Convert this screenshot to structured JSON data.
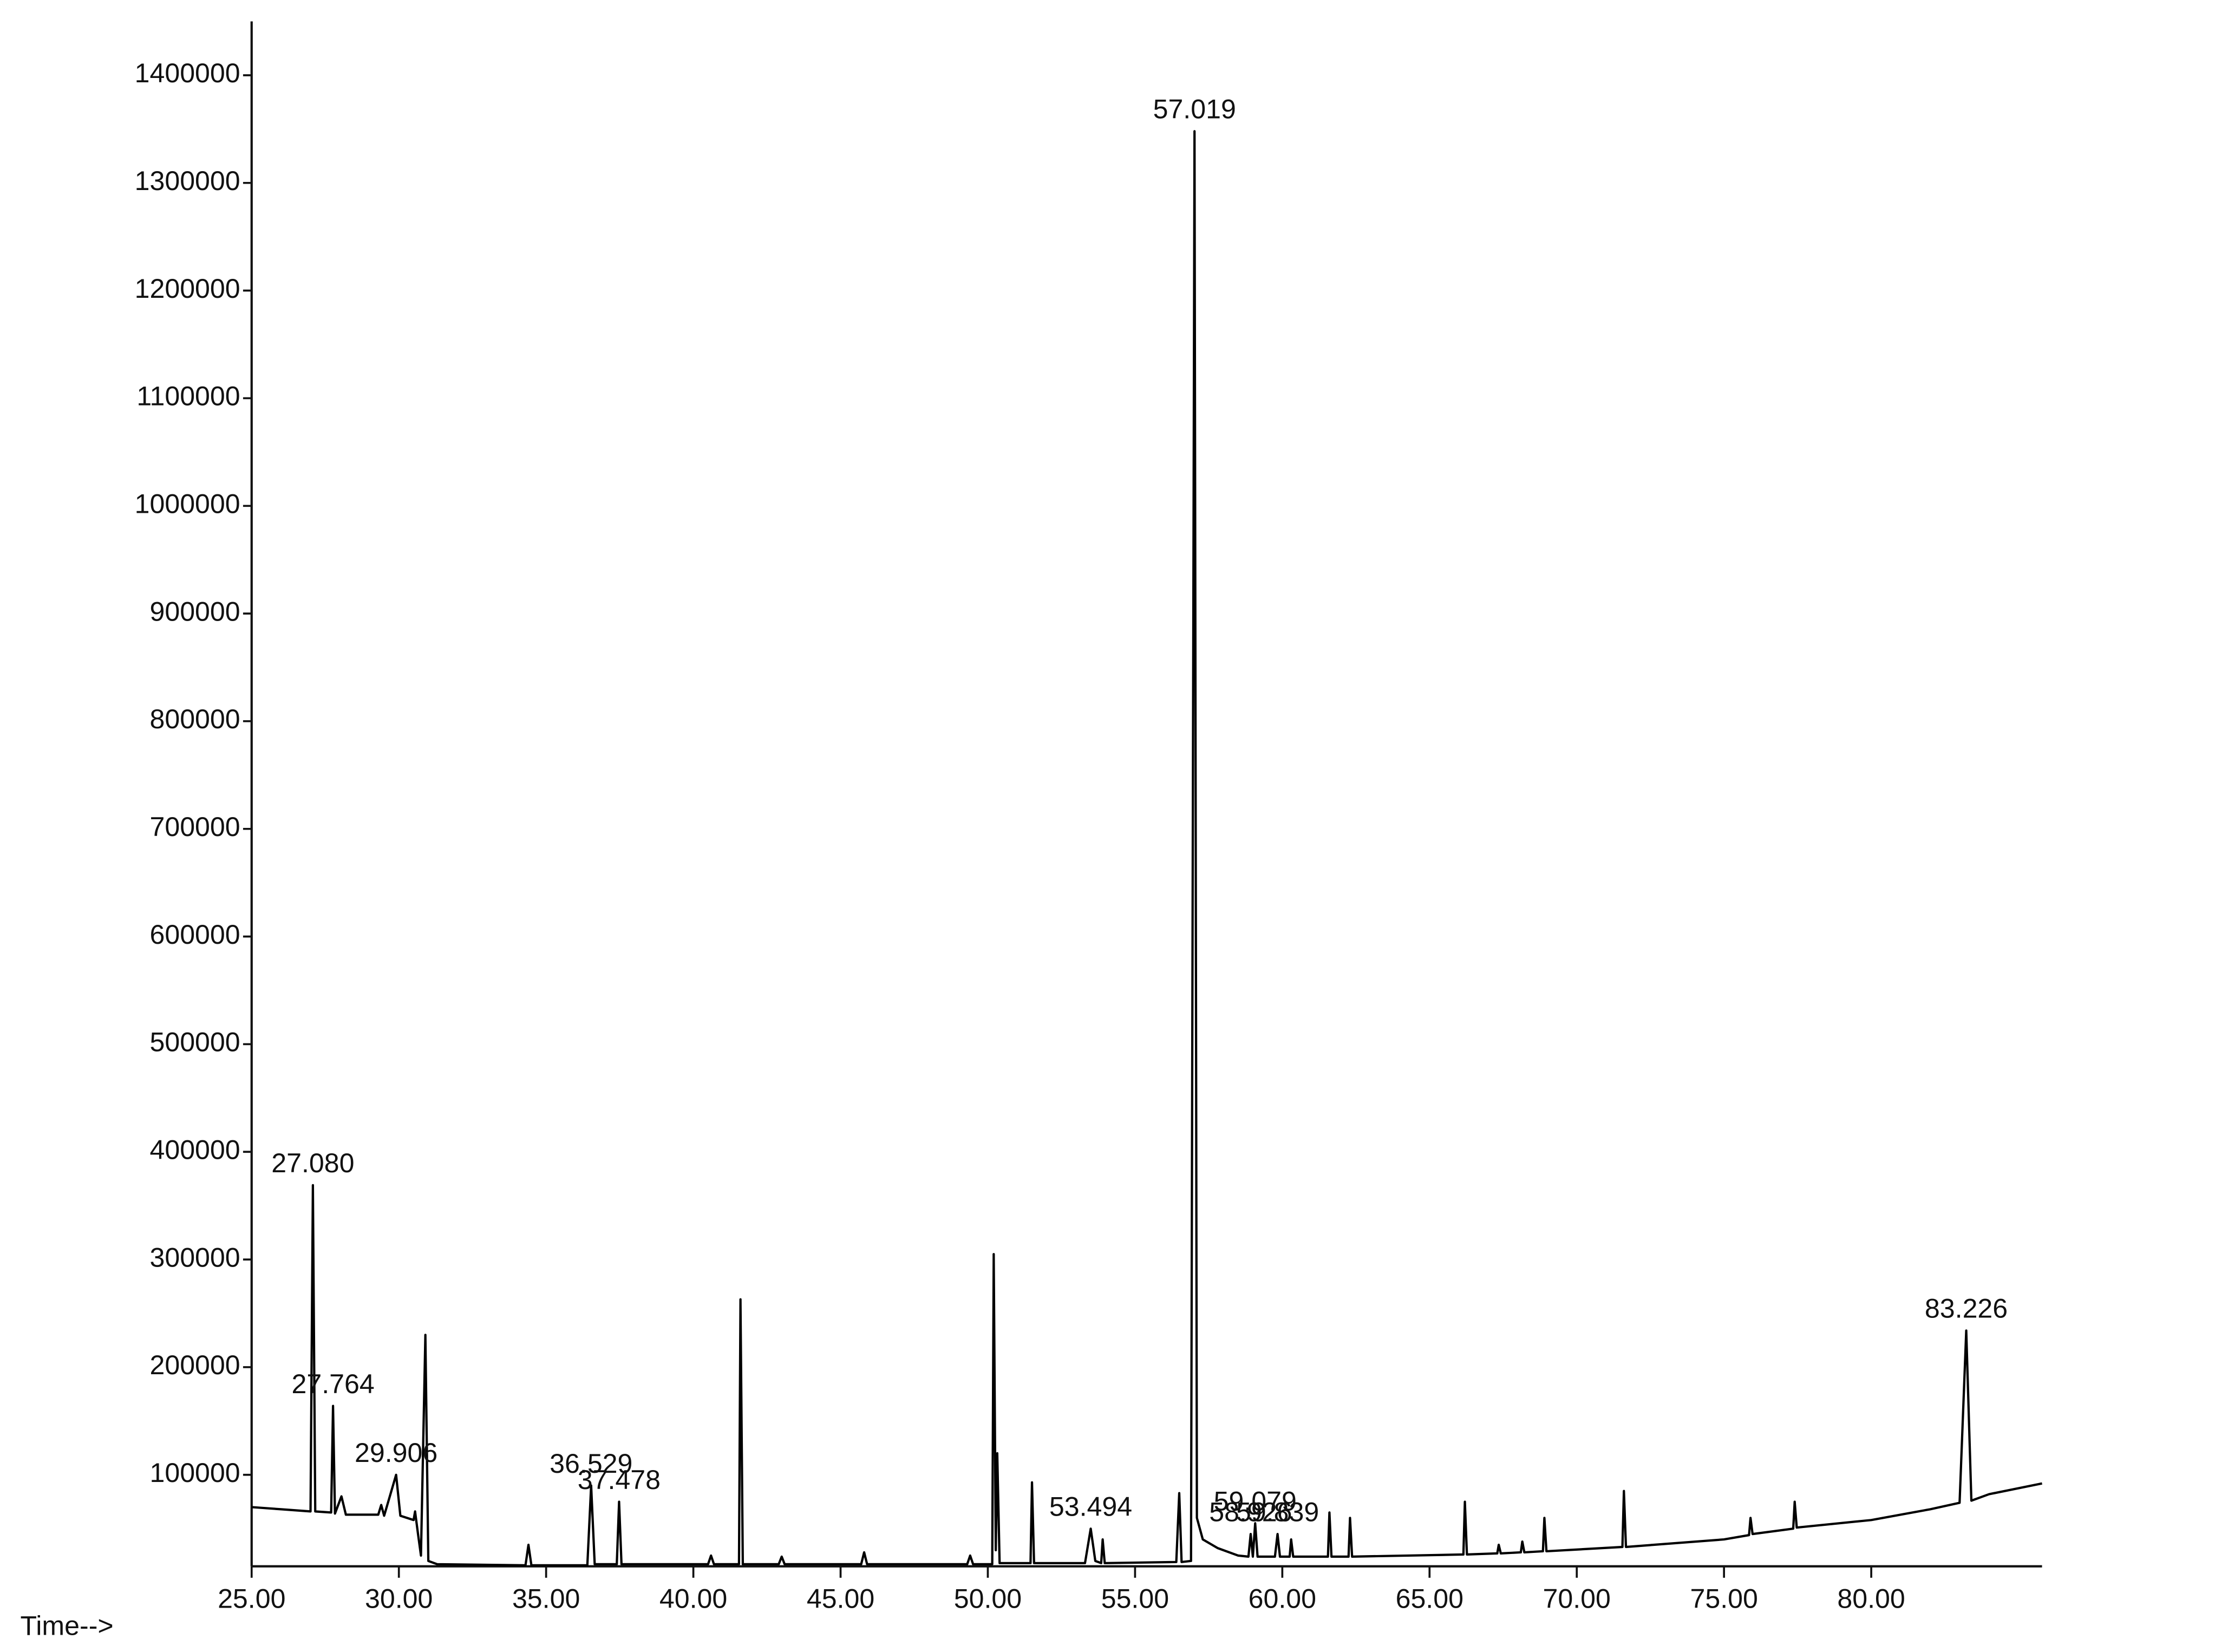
{
  "chart_data": {
    "type": "line",
    "x_label": "Time-->",
    "color": "#000000",
    "xlim": [
      25,
      85.8
    ],
    "ylim": [
      15000,
      1450000
    ],
    "xticks": [
      {
        "value": 25,
        "label": "25.00"
      },
      {
        "value": 30,
        "label": "30.00"
      },
      {
        "value": 35,
        "label": "35.00"
      },
      {
        "value": 40,
        "label": "40.00"
      },
      {
        "value": 45,
        "label": "45.00"
      },
      {
        "value": 50,
        "label": "50.00"
      },
      {
        "value": 55,
        "label": "55.00"
      },
      {
        "value": 60,
        "label": "60.00"
      },
      {
        "value": 65,
        "label": "65.00"
      },
      {
        "value": 70,
        "label": "70.00"
      },
      {
        "value": 75,
        "label": "75.00"
      },
      {
        "value": 80,
        "label": "80.00"
      }
    ],
    "yticks": [
      100000,
      200000,
      300000,
      400000,
      500000,
      600000,
      700000,
      800000,
      900000,
      1000000,
      1100000,
      1200000,
      1300000,
      1400000
    ],
    "x": [
      25,
      26,
      27.0,
      27.08,
      27.16,
      27.7,
      27.764,
      27.83,
      28.05,
      28.2,
      29.3,
      29.4,
      29.5,
      29.906,
      30.05,
      30.5,
      30.55,
      30.65,
      30.75,
      30.9,
      31.0,
      31.3,
      34.3,
      34.4,
      34.5,
      36.4,
      36.529,
      36.65,
      37.4,
      37.478,
      37.56,
      40.5,
      40.6,
      40.7,
      41.55,
      41.6,
      41.68,
      42.9,
      43.0,
      43.1,
      45.7,
      45.8,
      45.9,
      49.3,
      49.4,
      49.5,
      50.15,
      50.2,
      50.27,
      50.32,
      50.4,
      51.45,
      51.5,
      51.57,
      53.3,
      53.494,
      53.65,
      53.85,
      53.9,
      53.97,
      56.4,
      56.5,
      56.58,
      56.9,
      57.019,
      57.1,
      57.3,
      57.8,
      58.5,
      58.85,
      58.926,
      59.0,
      59.079,
      59.16,
      59.75,
      59.839,
      59.92,
      60.25,
      60.3,
      60.37,
      61.55,
      61.6,
      61.67,
      62.25,
      62.3,
      62.37,
      66.15,
      66.2,
      66.27,
      67.3,
      67.35,
      67.42,
      68.1,
      68.15,
      68.22,
      68.85,
      68.9,
      68.97,
      71.55,
      71.6,
      71.67,
      75,
      75.85,
      75.9,
      75.97,
      77.35,
      77.4,
      77.47,
      80,
      82,
      83.0,
      83.226,
      83.4,
      84,
      85.8
    ],
    "values": [
      70000,
      68000,
      66000,
      369000,
      66000,
      65000,
      164000,
      64000,
      80000,
      63000,
      63000,
      72000,
      62000,
      100000,
      62000,
      58000,
      66000,
      45000,
      25000,
      230000,
      20000,
      17000,
      16000,
      35000,
      16000,
      16000,
      90000,
      17000,
      17000,
      75000,
      17000,
      17000,
      25000,
      17000,
      17000,
      263000,
      17000,
      17000,
      24000,
      17000,
      17000,
      28000,
      17000,
      17000,
      25000,
      17000,
      17000,
      305000,
      30000,
      120000,
      18000,
      18000,
      93000,
      18000,
      18000,
      50000,
      20000,
      18000,
      40000,
      18000,
      19000,
      83000,
      19000,
      20000,
      1348000,
      60000,
      40000,
      32000,
      25000,
      24000,
      45000,
      24000,
      55000,
      24000,
      24000,
      45000,
      24000,
      24000,
      40000,
      24000,
      24000,
      65000,
      24000,
      24000,
      60000,
      24000,
      26000,
      75000,
      26000,
      27000,
      35000,
      27000,
      28000,
      38000,
      28000,
      29000,
      60000,
      29000,
      33000,
      85000,
      33000,
      40000,
      44000,
      60000,
      45000,
      50000,
      75000,
      51000,
      58000,
      68000,
      74000,
      234000,
      76000,
      82000,
      92000
    ],
    "annotations": [
      {
        "text": "27.080",
        "x": 27.08
      },
      {
        "text": "27.764",
        "x": 27.764
      },
      {
        "text": "29.906",
        "x": 29.906
      },
      {
        "text": "36.529",
        "x": 36.529
      },
      {
        "text": "37.478",
        "x": 37.478
      },
      {
        "text": "53.494",
        "x": 53.494
      },
      {
        "text": "57.019",
        "x": 57.019
      },
      {
        "text": "58.926",
        "x": 58.926
      },
      {
        "text": "59.079",
        "x": 59.079
      },
      {
        "text": "59.839",
        "x": 59.839
      },
      {
        "text": "83.226",
        "x": 83.226
      }
    ]
  }
}
